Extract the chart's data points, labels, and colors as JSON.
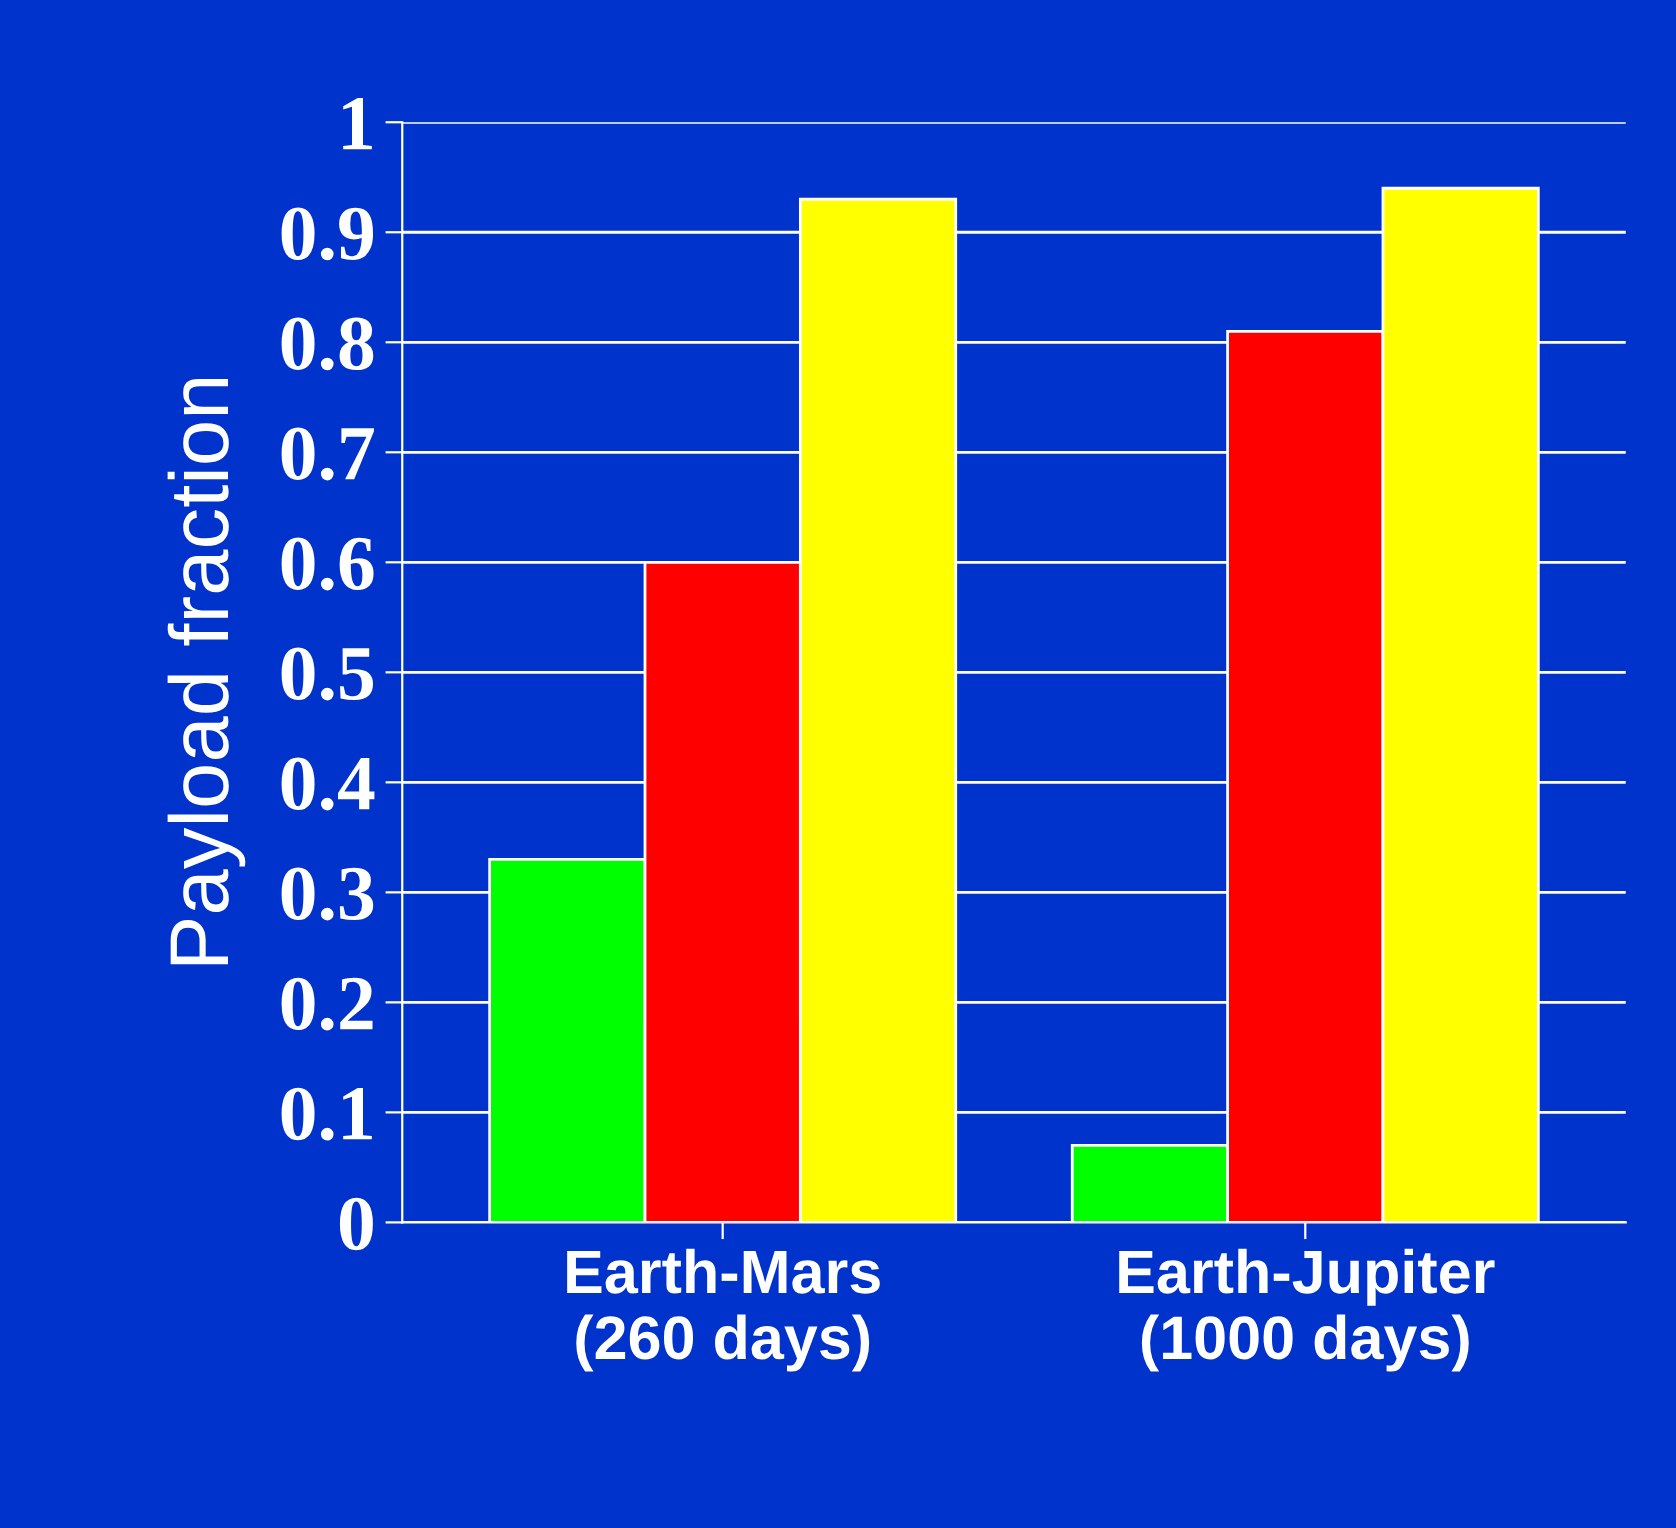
{
  "chart_data": {
    "type": "bar",
    "ylabel": "Payload fraction",
    "categories": [
      "Earth-Mars\n(260 days)",
      "Earth-Jupiter\n(1000 days)"
    ],
    "series": [
      {
        "color": "#00ff00",
        "values": [
          0.33,
          0.07
        ]
      },
      {
        "color": "#ff0000",
        "values": [
          0.6,
          0.81
        ]
      },
      {
        "color": "#ffff00",
        "values": [
          0.93,
          0.94
        ]
      }
    ],
    "ylim": [
      0,
      1
    ],
    "yticks": [
      0,
      0.1,
      0.2,
      0.3,
      0.4,
      0.5,
      0.6,
      0.7,
      0.8,
      0.9,
      1
    ],
    "grid": "y"
  }
}
